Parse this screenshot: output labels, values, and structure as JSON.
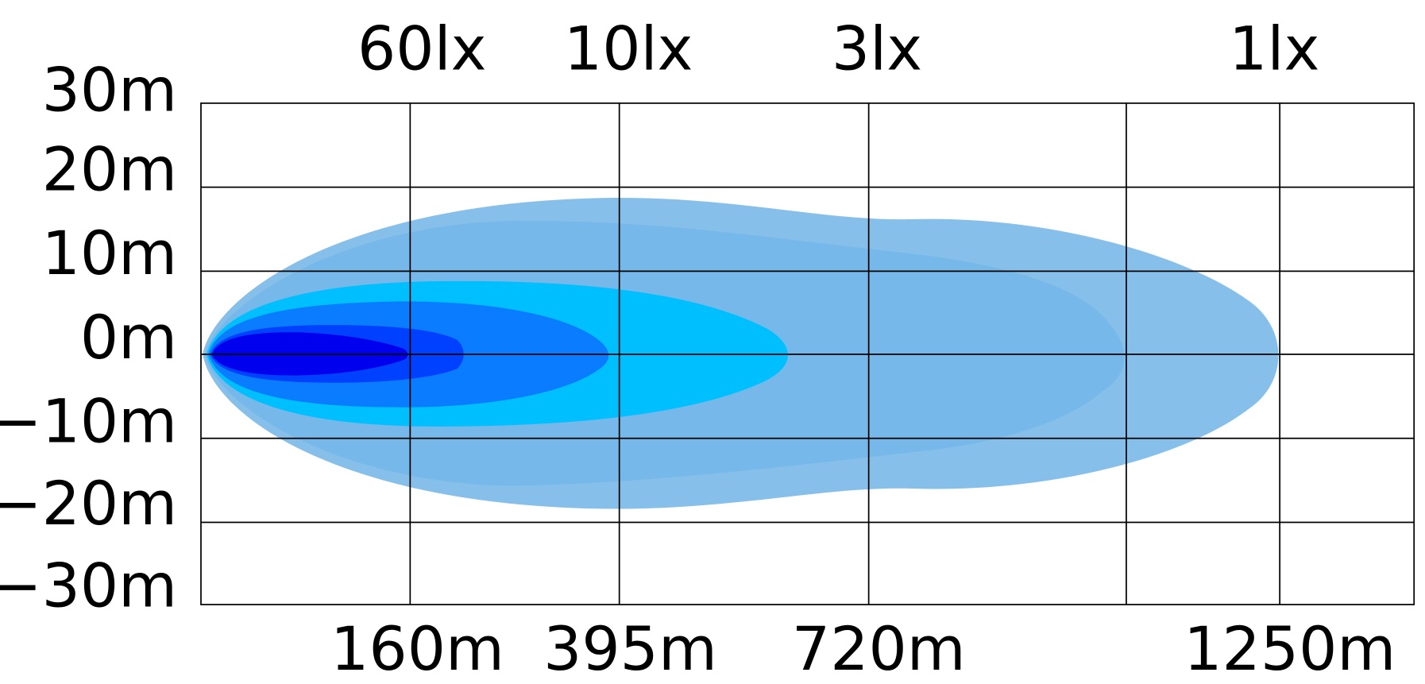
{
  "y_labels": [
    "30m",
    "20m",
    "10m",
    "0m",
    "−10m",
    "−20m",
    "−30m"
  ],
  "lux_labels": [
    "60lx",
    "10lx",
    "3lx",
    "1lx"
  ],
  "distance_labels": [
    "160m",
    "395m",
    "720m",
    "1250m"
  ]
}
